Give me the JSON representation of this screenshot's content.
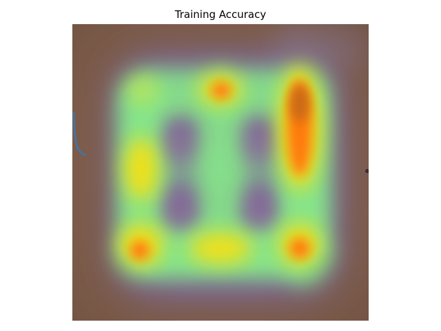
{
  "title": "Training Accuracy",
  "image": {
    "description_icon": "heatmap-overlay-image",
    "colors": {
      "background_brown": "#7a5a4a",
      "purple_haze": "#7c6a9c",
      "green_glow": "#86e48a",
      "yellow": "#f2e015",
      "orange": "#ff7a10",
      "deep_orange": "#c96a12",
      "stroke_blue": "#3a78b0"
    }
  }
}
